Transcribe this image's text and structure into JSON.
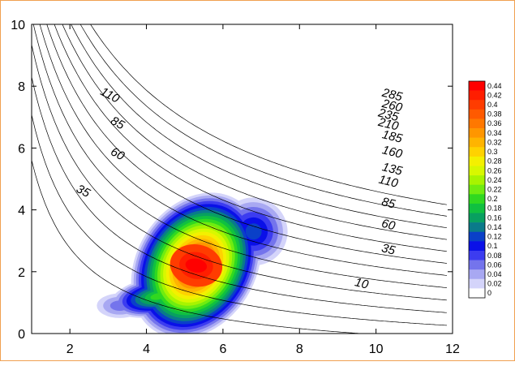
{
  "chart_data": {
    "type": "heatmap",
    "title": "",
    "xlabel": "",
    "ylabel": "",
    "xlim": [
      1,
      12
    ],
    "ylim": [
      0,
      10
    ],
    "x_ticks": [
      2,
      4,
      6,
      8,
      10,
      12
    ],
    "y_ticks": [
      0,
      2,
      4,
      6,
      8,
      10
    ],
    "grid": false,
    "colorbar": {
      "position": "right",
      "levels": [
        0,
        0.02,
        0.04,
        0.06,
        0.08,
        0.1,
        0.12,
        0.14,
        0.16,
        0.18,
        0.2,
        0.22,
        0.24,
        0.26,
        0.28,
        0.3,
        0.32,
        0.34,
        0.36,
        0.38,
        0.4,
        0.42,
        0.44
      ],
      "labels": [
        "0",
        "0.02",
        "0.04",
        "0.06",
        "0.08",
        "0.1",
        "0.12",
        "0.14",
        "0.16",
        "0.18",
        "0.2",
        "0.22",
        "0.24",
        "0.26",
        "0.28",
        "0.3",
        "0.32",
        "0.34",
        "0.36",
        "0.38",
        "0.4",
        "0.42",
        "0.44"
      ],
      "colors": [
        "#ffffff",
        "#d4d4fa",
        "#a8a8f2",
        "#7474ec",
        "#3c3cf0",
        "#0a10e8",
        "#0a40c8",
        "#0a7a8a",
        "#08a060",
        "#10c040",
        "#30d820",
        "#70ec10",
        "#a8f400",
        "#d8f800",
        "#f4f000",
        "#ffd200",
        "#ffb400",
        "#ff9600",
        "#ff7800",
        "#ff5a00",
        "#ff3c00",
        "#ff1e00",
        "#ff0000"
      ]
    },
    "density": {
      "peak": 0.44,
      "peak_at": [
        5.3,
        2.2
      ],
      "components": [
        {
          "x": 5.3,
          "y": 2.2,
          "weight": 0.42
        },
        {
          "x": 4.3,
          "y": 1.2,
          "weight": 0.2
        },
        {
          "x": 6.8,
          "y": 3.3,
          "weight": 0.12
        },
        {
          "x": 3.3,
          "y": 0.9,
          "weight": 0.06
        }
      ]
    },
    "iso_lines": [
      {
        "label": "10",
        "value": 10,
        "label_at": [
          9.6,
          1.5
        ]
      },
      {
        "label": "35",
        "value": 35,
        "label_at": [
          10.3,
          2.6
        ],
        "label2": "35",
        "label2_at": [
          2.3,
          4.5
        ]
      },
      {
        "label": "60",
        "value": 60,
        "label_at": [
          10.3,
          3.4
        ],
        "label2": "60",
        "label2_at": [
          3.2,
          5.7
        ]
      },
      {
        "label": "85",
        "value": 85,
        "label_at": [
          10.3,
          4.1
        ],
        "label2": "85",
        "label2_at": [
          3.2,
          6.7
        ]
      },
      {
        "label": "110",
        "value": 110,
        "label_at": [
          10.3,
          4.8
        ],
        "label2": "110",
        "label2_at": [
          3.0,
          7.6
        ]
      },
      {
        "label": "135",
        "value": 135,
        "label_at": [
          10.4,
          5.2
        ]
      },
      {
        "label": "160",
        "value": 160,
        "label_at": [
          10.4,
          5.75
        ]
      },
      {
        "label": "185",
        "value": 185,
        "label_at": [
          10.4,
          6.25
        ]
      },
      {
        "label": "210",
        "value": 210,
        "label_at": [
          10.3,
          6.65
        ]
      },
      {
        "label": "235",
        "value": 235,
        "label_at": [
          10.3,
          6.95
        ]
      },
      {
        "label": "260",
        "value": 260,
        "label_at": [
          10.4,
          7.25
        ]
      },
      {
        "label": "285",
        "value": 285,
        "label_at": [
          10.4,
          7.6
        ]
      }
    ]
  }
}
